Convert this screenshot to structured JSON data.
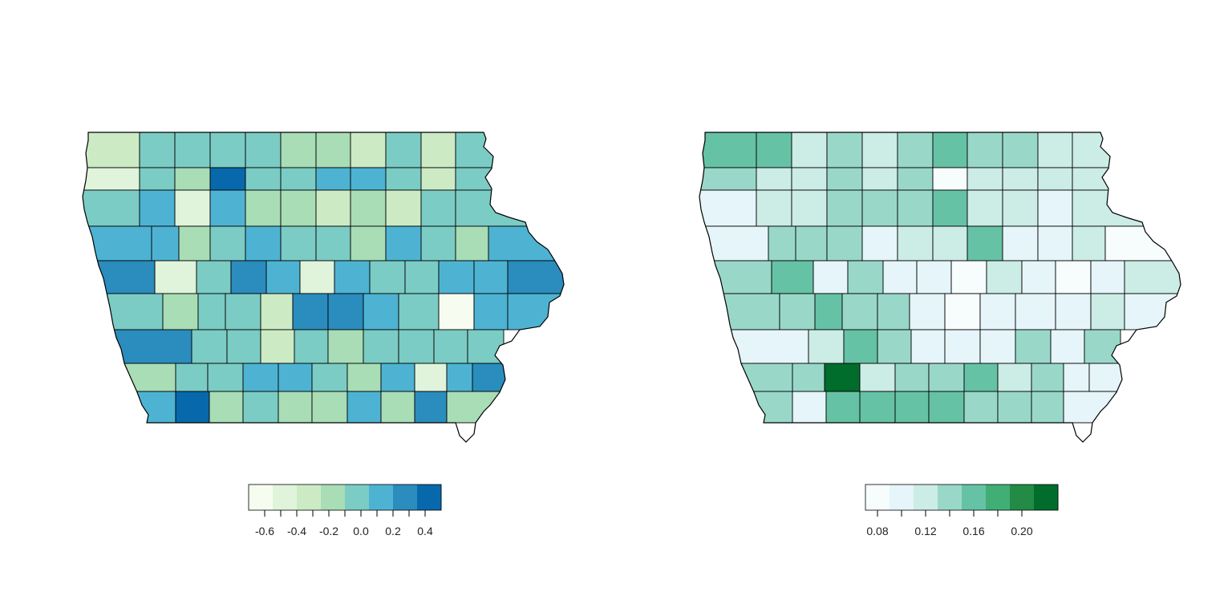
{
  "maps": [
    {
      "id": "left",
      "palette": "GnBu",
      "legend": {
        "colors": [
          "#f7fcf0",
          "#e0f3db",
          "#ccebc5",
          "#a8ddb5",
          "#7bccc4",
          "#4eb3d3",
          "#2b8cbe",
          "#0868ac"
        ],
        "range": [
          -0.7,
          0.5
        ],
        "ticks": [
          {
            "value": -0.6,
            "label": "-0.6"
          },
          {
            "value": -0.4,
            "label": "-0.4"
          },
          {
            "value": -0.2,
            "label": "-0.2"
          },
          {
            "value": 0.0,
            "label": "0.0"
          },
          {
            "value": 0.2,
            "label": "0.2"
          },
          {
            "value": 0.4,
            "label": "0.4"
          }
        ]
      },
      "county_classes": [
        [
          2,
          4,
          4,
          4,
          4,
          3,
          3,
          2,
          4,
          2,
          4
        ],
        [
          1,
          4,
          3,
          7,
          4,
          4,
          5,
          5,
          4,
          2,
          4
        ],
        [
          4,
          5,
          1,
          5,
          3,
          3,
          2,
          3,
          2,
          4,
          4
        ],
        [
          5,
          5,
          3,
          4,
          5,
          4,
          4,
          3,
          5,
          4,
          3,
          5
        ],
        [
          6,
          1,
          4,
          6,
          5,
          1,
          5,
          4,
          4,
          5,
          5,
          6
        ],
        [
          4,
          3,
          4,
          4,
          2,
          6,
          6,
          5,
          4,
          0,
          5,
          5
        ],
        [
          6,
          4,
          4,
          2,
          4,
          3,
          4,
          4,
          4,
          4,
          4
        ],
        [
          3,
          4,
          4,
          5,
          5,
          4,
          3,
          5,
          1,
          5,
          6
        ],
        [
          5,
          7,
          3,
          4,
          3,
          3,
          5,
          3,
          6,
          3
        ]
      ]
    },
    {
      "id": "right",
      "palette": "BuGn",
      "legend": {
        "colors": [
          "#f7fcfd",
          "#e5f5f9",
          "#ccece6",
          "#99d8c9",
          "#66c2a4",
          "#41ae76",
          "#238b45",
          "#006d2c"
        ],
        "range": [
          0.07,
          0.23
        ],
        "ticks": [
          {
            "value": 0.08,
            "label": "0.08"
          },
          {
            "value": 0.12,
            "label": "0.12"
          },
          {
            "value": 0.16,
            "label": "0.16"
          },
          {
            "value": 0.2,
            "label": "0.20"
          }
        ]
      },
      "county_classes": [
        [
          4,
          4,
          2,
          3,
          2,
          3,
          4,
          3,
          3,
          2,
          2
        ],
        [
          3,
          2,
          2,
          3,
          2,
          3,
          0,
          2,
          2,
          2,
          2
        ],
        [
          1,
          2,
          2,
          3,
          3,
          3,
          4,
          2,
          2,
          1,
          2
        ],
        [
          1,
          3,
          3,
          3,
          1,
          2,
          2,
          4,
          1,
          1,
          2,
          0
        ],
        [
          3,
          4,
          1,
          3,
          1,
          1,
          0,
          2,
          1,
          0,
          1,
          2
        ],
        [
          3,
          3,
          4,
          3,
          3,
          1,
          0,
          1,
          1,
          1,
          2,
          1
        ],
        [
          1,
          2,
          4,
          3,
          1,
          1,
          1,
          3,
          1,
          3,
          1
        ],
        [
          3,
          3,
          7,
          2,
          3,
          3,
          4,
          2,
          3,
          1,
          1
        ],
        [
          3,
          1,
          4,
          4,
          4,
          4,
          3,
          3,
          3,
          1
        ]
      ]
    }
  ]
}
